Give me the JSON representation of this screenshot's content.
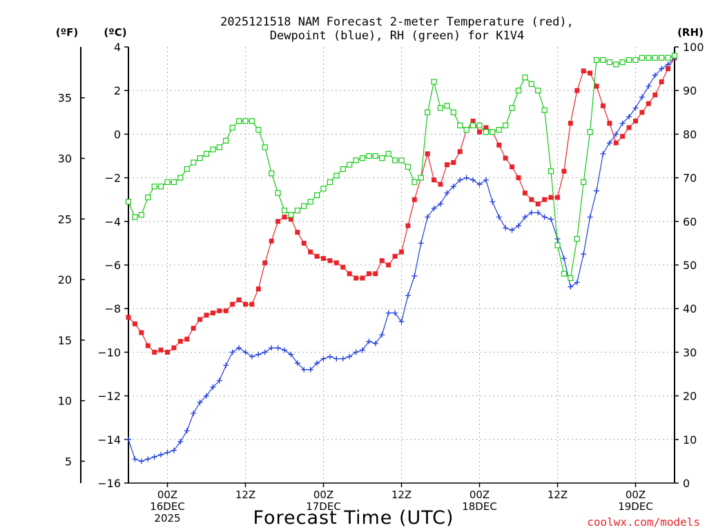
{
  "title_line1": "2025121518 NAM Forecast 2-meter Temperature (red),",
  "title_line2": "Dewpoint (blue), RH (green) for K1V4",
  "unit_f": "(ºF)",
  "unit_c": "(ºC)",
  "unit_rh": "(RH)",
  "xlabel": "Forecast Time (UTC)",
  "credit": "coolwx.com/models",
  "colors": {
    "temperature": "#e8242a",
    "dewpoint": "#1e3cdc",
    "rh": "#14c814"
  },
  "chart_data": {
    "type": "line",
    "title": "2025121518 NAM Forecast 2-meter Temperature (red), Dewpoint (blue), RH (green) for K1V4",
    "xlabel": "Forecast Time (UTC)",
    "x_unit": "forecast hour",
    "xlim": [
      0,
      84
    ],
    "x_ticks": [
      {
        "x": 6,
        "lines": [
          "00Z",
          "16DEC",
          "2025"
        ]
      },
      {
        "x": 18,
        "lines": [
          "12Z"
        ]
      },
      {
        "x": 30,
        "lines": [
          "00Z",
          "17DEC"
        ]
      },
      {
        "x": 42,
        "lines": [
          "12Z"
        ]
      },
      {
        "x": 54,
        "lines": [
          "00Z",
          "18DEC"
        ]
      },
      {
        "x": 66,
        "lines": [
          "12Z"
        ]
      },
      {
        "x": 78,
        "lines": [
          "00Z",
          "19DEC"
        ]
      }
    ],
    "y_left_c": {
      "label": "(ºC)",
      "lim": [
        -16,
        4
      ],
      "ticks": [
        -16,
        -14,
        -12,
        -10,
        -8,
        -6,
        -4,
        -2,
        0,
        2,
        4
      ]
    },
    "y_left_f": {
      "label": "(ºF)",
      "ticks": [
        5,
        10,
        15,
        20,
        25,
        30,
        35
      ]
    },
    "y_right": {
      "label": "(RH)",
      "lim": [
        0,
        100
      ],
      "ticks": [
        0,
        10,
        20,
        30,
        40,
        50,
        60,
        70,
        80,
        90,
        100
      ]
    },
    "grid": true,
    "series": [
      {
        "name": "Temperature",
        "axis": "C",
        "color": "#e8242a",
        "marker": "filled-square",
        "points": [
          [
            0,
            -8.4
          ],
          [
            1,
            -8.7
          ],
          [
            2,
            -9.1
          ],
          [
            3,
            -9.7
          ],
          [
            4,
            -10.0
          ],
          [
            5,
            -9.9
          ],
          [
            6,
            -10.0
          ],
          [
            7,
            -9.8
          ],
          [
            8,
            -9.5
          ],
          [
            9,
            -9.4
          ],
          [
            10,
            -8.9
          ],
          [
            11,
            -8.5
          ],
          [
            12,
            -8.3
          ],
          [
            13,
            -8.2
          ],
          [
            14,
            -8.1
          ],
          [
            15,
            -8.1
          ],
          [
            16,
            -7.8
          ],
          [
            17,
            -7.6
          ],
          [
            18,
            -7.8
          ],
          [
            19,
            -7.8
          ],
          [
            20,
            -7.1
          ],
          [
            21,
            -5.9
          ],
          [
            22,
            -4.9
          ],
          [
            23,
            -4.0
          ],
          [
            24,
            -3.8
          ],
          [
            25,
            -3.9
          ],
          [
            26,
            -4.5
          ],
          [
            27,
            -5.0
          ],
          [
            28,
            -5.4
          ],
          [
            29,
            -5.6
          ],
          [
            30,
            -5.7
          ],
          [
            31,
            -5.8
          ],
          [
            32,
            -5.9
          ],
          [
            33,
            -6.1
          ],
          [
            34,
            -6.4
          ],
          [
            35,
            -6.6
          ],
          [
            36,
            -6.6
          ],
          [
            37,
            -6.4
          ],
          [
            38,
            -6.4
          ],
          [
            39,
            -5.8
          ],
          [
            40,
            -6.0
          ],
          [
            41,
            -5.6
          ],
          [
            42,
            -5.4
          ],
          [
            43,
            -4.2
          ],
          [
            44,
            -3.0
          ],
          [
            45,
            -2.0
          ],
          [
            46,
            -0.9
          ],
          [
            47,
            -2.1
          ],
          [
            48,
            -2.3
          ],
          [
            49,
            -1.4
          ],
          [
            50,
            -1.3
          ],
          [
            51,
            -0.8
          ],
          [
            52,
            0.2
          ],
          [
            53,
            0.6
          ],
          [
            54,
            0.1
          ],
          [
            55,
            0.3
          ],
          [
            56,
            0.1
          ],
          [
            57,
            -0.5
          ],
          [
            58,
            -1.1
          ],
          [
            59,
            -1.5
          ],
          [
            60,
            -2.0
          ],
          [
            61,
            -2.7
          ],
          [
            62,
            -3.0
          ],
          [
            63,
            -3.2
          ],
          [
            64,
            -3.0
          ],
          [
            65,
            -2.9
          ],
          [
            66,
            -2.9
          ],
          [
            67,
            -1.7
          ],
          [
            68,
            0.5
          ],
          [
            69,
            2.0
          ],
          [
            70,
            2.9
          ],
          [
            71,
            2.8
          ],
          [
            72,
            2.2
          ],
          [
            73,
            1.3
          ],
          [
            74,
            0.5
          ],
          [
            75,
            -0.4
          ],
          [
            76,
            -0.1
          ],
          [
            77,
            0.3
          ],
          [
            78,
            0.6
          ],
          [
            79,
            1.0
          ],
          [
            80,
            1.4
          ],
          [
            81,
            1.8
          ],
          [
            82,
            2.4
          ],
          [
            83,
            3.0
          ],
          [
            84,
            3.5
          ]
        ]
      },
      {
        "name": "Dewpoint",
        "axis": "C",
        "color": "#1e3cdc",
        "marker": "plus",
        "points": [
          [
            0,
            -14.0
          ],
          [
            1,
            -14.9
          ],
          [
            2,
            -15.0
          ],
          [
            3,
            -14.9
          ],
          [
            4,
            -14.8
          ],
          [
            5,
            -14.7
          ],
          [
            6,
            -14.6
          ],
          [
            7,
            -14.5
          ],
          [
            8,
            -14.1
          ],
          [
            9,
            -13.6
          ],
          [
            10,
            -12.8
          ],
          [
            11,
            -12.3
          ],
          [
            12,
            -12.0
          ],
          [
            13,
            -11.6
          ],
          [
            14,
            -11.3
          ],
          [
            15,
            -10.6
          ],
          [
            16,
            -10.0
          ],
          [
            17,
            -9.8
          ],
          [
            18,
            -10.0
          ],
          [
            19,
            -10.2
          ],
          [
            20,
            -10.1
          ],
          [
            21,
            -10.0
          ],
          [
            22,
            -9.8
          ],
          [
            23,
            -9.8
          ],
          [
            24,
            -9.9
          ],
          [
            25,
            -10.1
          ],
          [
            26,
            -10.5
          ],
          [
            27,
            -10.8
          ],
          [
            28,
            -10.8
          ],
          [
            29,
            -10.5
          ],
          [
            30,
            -10.3
          ],
          [
            31,
            -10.2
          ],
          [
            32,
            -10.3
          ],
          [
            33,
            -10.3
          ],
          [
            34,
            -10.2
          ],
          [
            35,
            -10.0
          ],
          [
            36,
            -9.9
          ],
          [
            37,
            -9.5
          ],
          [
            38,
            -9.6
          ],
          [
            39,
            -9.2
          ],
          [
            40,
            -8.2
          ],
          [
            41,
            -8.2
          ],
          [
            42,
            -8.6
          ],
          [
            43,
            -7.4
          ],
          [
            44,
            -6.5
          ],
          [
            45,
            -5.0
          ],
          [
            46,
            -3.8
          ],
          [
            47,
            -3.4
          ],
          [
            48,
            -3.2
          ],
          [
            49,
            -2.7
          ],
          [
            50,
            -2.4
          ],
          [
            51,
            -2.1
          ],
          [
            52,
            -2.0
          ],
          [
            53,
            -2.1
          ],
          [
            54,
            -2.3
          ],
          [
            55,
            -2.1
          ],
          [
            56,
            -3.1
          ],
          [
            57,
            -3.8
          ],
          [
            58,
            -4.3
          ],
          [
            59,
            -4.4
          ],
          [
            60,
            -4.2
          ],
          [
            61,
            -3.8
          ],
          [
            62,
            -3.6
          ],
          [
            63,
            -3.6
          ],
          [
            64,
            -3.8
          ],
          [
            65,
            -3.9
          ],
          [
            66,
            -4.8
          ],
          [
            67,
            -5.7
          ],
          [
            68,
            -7.0
          ],
          [
            69,
            -6.8
          ],
          [
            70,
            -5.5
          ],
          [
            71,
            -3.8
          ],
          [
            72,
            -2.6
          ],
          [
            73,
            -0.9
          ],
          [
            74,
            -0.4
          ],
          [
            75,
            0.0
          ],
          [
            76,
            0.5
          ],
          [
            77,
            0.8
          ],
          [
            78,
            1.2
          ],
          [
            79,
            1.7
          ],
          [
            80,
            2.2
          ],
          [
            81,
            2.7
          ],
          [
            82,
            3.0
          ],
          [
            83,
            3.2
          ],
          [
            84,
            3.5
          ]
        ]
      },
      {
        "name": "RH",
        "axis": "RH",
        "color": "#14c814",
        "marker": "open-square",
        "points": [
          [
            0,
            64.5
          ],
          [
            1,
            61.0
          ],
          [
            2,
            61.5
          ],
          [
            3,
            65.5
          ],
          [
            4,
            68.0
          ],
          [
            5,
            68.0
          ],
          [
            6,
            69.0
          ],
          [
            7,
            69.0
          ],
          [
            8,
            70.0
          ],
          [
            9,
            72.0
          ],
          [
            10,
            73.5
          ],
          [
            11,
            74.5
          ],
          [
            12,
            75.5
          ],
          [
            13,
            76.5
          ],
          [
            14,
            77.0
          ],
          [
            15,
            78.5
          ],
          [
            16,
            81.5
          ],
          [
            17,
            83.0
          ],
          [
            18,
            83.0
          ],
          [
            19,
            83.0
          ],
          [
            20,
            81.0
          ],
          [
            21,
            77.0
          ],
          [
            22,
            71.0
          ],
          [
            23,
            66.5
          ],
          [
            24,
            62.5
          ],
          [
            25,
            61.5
          ],
          [
            26,
            62.5
          ],
          [
            27,
            63.5
          ],
          [
            28,
            64.5
          ],
          [
            29,
            66.0
          ],
          [
            30,
            67.5
          ],
          [
            31,
            69.0
          ],
          [
            32,
            70.5
          ],
          [
            33,
            72.0
          ],
          [
            34,
            73.0
          ],
          [
            35,
            74.0
          ],
          [
            36,
            74.5
          ],
          [
            37,
            75.0
          ],
          [
            38,
            75.0
          ],
          [
            39,
            74.5
          ],
          [
            40,
            75.5
          ],
          [
            41,
            74.0
          ],
          [
            42,
            74.0
          ],
          [
            43,
            72.5
          ],
          [
            44,
            69.0
          ],
          [
            45,
            70.0
          ],
          [
            46,
            85.0
          ],
          [
            47,
            92.0
          ],
          [
            48,
            86.0
          ],
          [
            49,
            86.5
          ],
          [
            50,
            85.0
          ],
          [
            51,
            82.0
          ],
          [
            52,
            81.0
          ],
          [
            53,
            82.0
          ],
          [
            54,
            82.0
          ],
          [
            55,
            80.5
          ],
          [
            56,
            80.5
          ],
          [
            57,
            81.0
          ],
          [
            58,
            82.0
          ],
          [
            59,
            86.0
          ],
          [
            60,
            90.0
          ],
          [
            61,
            93.0
          ],
          [
            62,
            91.5
          ],
          [
            63,
            90.0
          ],
          [
            64,
            85.5
          ],
          [
            65,
            71.5
          ],
          [
            66,
            54.5
          ],
          [
            67,
            48.0
          ],
          [
            68,
            47.0
          ],
          [
            69,
            56.0
          ],
          [
            70,
            69.0
          ],
          [
            71,
            80.5
          ],
          [
            72,
            97.0
          ],
          [
            73,
            97.0
          ],
          [
            74,
            96.5
          ],
          [
            75,
            96.0
          ],
          [
            76,
            96.5
          ],
          [
            77,
            97.0
          ],
          [
            78,
            97.0
          ],
          [
            79,
            97.5
          ],
          [
            80,
            97.5
          ],
          [
            81,
            97.5
          ],
          [
            82,
            97.5
          ],
          [
            83,
            97.5
          ],
          [
            84,
            98.0
          ]
        ]
      }
    ]
  }
}
